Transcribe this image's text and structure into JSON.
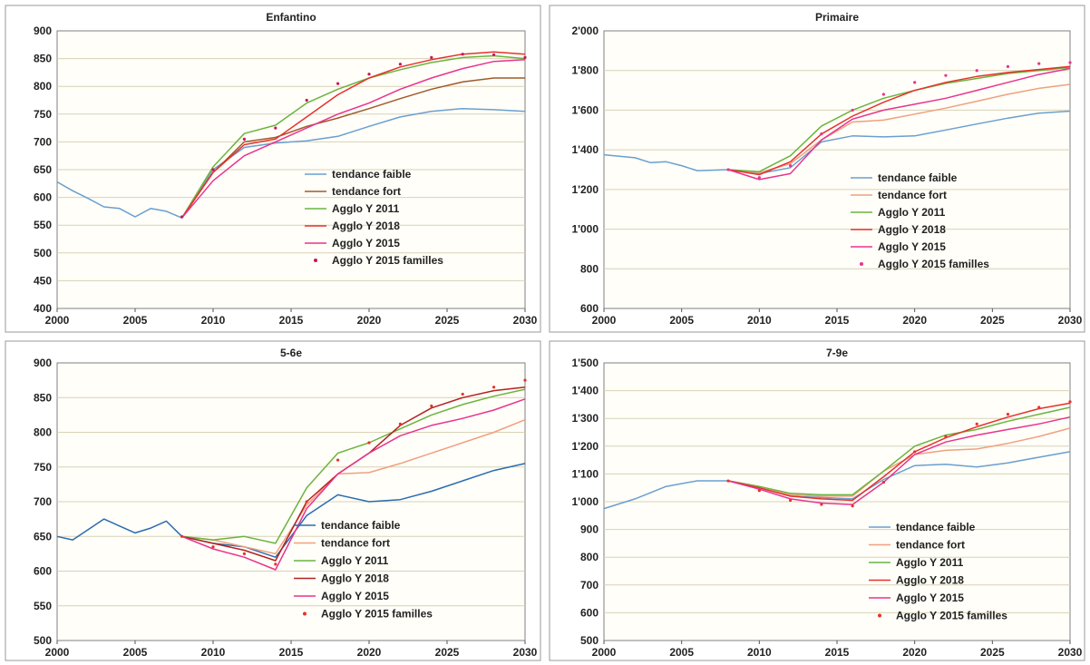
{
  "chart_data": [
    {
      "type": "line",
      "title": "Enfantino",
      "ylim": [
        400,
        900
      ],
      "yticks": [
        400,
        450,
        500,
        550,
        600,
        650,
        700,
        750,
        800,
        850,
        900
      ],
      "xlim": [
        2000,
        2030
      ],
      "xticks": [
        2000,
        2005,
        2010,
        2015,
        2020,
        2025,
        2030
      ],
      "legend_position": "center-right",
      "series": [
        {
          "name": "tendance faible",
          "color": "#6a9fd0",
          "style": "line",
          "x": [
            2000,
            2001,
            2002,
            2003,
            2004,
            2005,
            2006,
            2007,
            2008,
            2010,
            2012,
            2014,
            2016,
            2018,
            2020,
            2022,
            2024,
            2026,
            2028,
            2030
          ],
          "values": [
            628,
            612,
            598,
            583,
            580,
            565,
            580,
            575,
            563,
            650,
            690,
            698,
            702,
            710,
            728,
            745,
            755,
            760,
            758,
            755
          ]
        },
        {
          "name": "tendance fort",
          "color": "#a05a2c",
          "style": "line",
          "x": [
            2008,
            2010,
            2012,
            2014,
            2016,
            2018,
            2020,
            2022,
            2024,
            2026,
            2028,
            2030
          ],
          "values": [
            563,
            645,
            700,
            708,
            728,
            743,
            760,
            778,
            795,
            808,
            815,
            815
          ]
        },
        {
          "name": "Agglo Y 2011",
          "color": "#6cb33f",
          "style": "line",
          "x": [
            2008,
            2010,
            2012,
            2014,
            2016,
            2018,
            2020,
            2022,
            2024,
            2026,
            2028,
            2030
          ],
          "values": [
            563,
            655,
            715,
            730,
            770,
            795,
            815,
            830,
            843,
            852,
            855,
            850
          ]
        },
        {
          "name": "Agglo Y 2018",
          "color": "#e5322d",
          "style": "line",
          "x": [
            2008,
            2010,
            2012,
            2014,
            2016,
            2018,
            2020,
            2022,
            2024,
            2026,
            2028,
            2030
          ],
          "values": [
            563,
            645,
            695,
            705,
            745,
            785,
            815,
            835,
            848,
            858,
            862,
            858
          ]
        },
        {
          "name": "Agglo Y 2015",
          "color": "#e8338f",
          "style": "line",
          "x": [
            2008,
            2010,
            2012,
            2014,
            2016,
            2018,
            2020,
            2022,
            2024,
            2026,
            2028,
            2030
          ],
          "values": [
            563,
            630,
            675,
            700,
            725,
            750,
            770,
            795,
            815,
            832,
            845,
            848
          ]
        },
        {
          "name": "Agglo Y 2015  familles",
          "color": "#c2185b",
          "style": "dots",
          "x": [
            2008,
            2010,
            2012,
            2014,
            2016,
            2018,
            2020,
            2022,
            2024,
            2026,
            2028,
            2030
          ],
          "values": [
            565,
            650,
            705,
            725,
            775,
            805,
            822,
            840,
            852,
            858,
            857,
            852
          ]
        }
      ]
    },
    {
      "type": "line",
      "title": "Primaire",
      "ylim": [
        600,
        2000
      ],
      "yticks": [
        600,
        800,
        1000,
        1200,
        1400,
        1600,
        1800,
        2000
      ],
      "ytick_labels": [
        "600",
        "800",
        "1'000",
        "1'200",
        "1'400",
        "1'600",
        "1'800",
        "2'000"
      ],
      "xlim": [
        2000,
        2030
      ],
      "xticks": [
        2000,
        2005,
        2010,
        2015,
        2020,
        2025,
        2030
      ],
      "legend_position": "center-right",
      "series": [
        {
          "name": "tendance faible",
          "color": "#6a9fd0",
          "style": "line",
          "x": [
            2000,
            2002,
            2003,
            2004,
            2005,
            2006,
            2008,
            2010,
            2012,
            2014,
            2016,
            2018,
            2020,
            2022,
            2024,
            2026,
            2028,
            2030
          ],
          "values": [
            1375,
            1360,
            1335,
            1340,
            1320,
            1295,
            1300,
            1280,
            1310,
            1440,
            1470,
            1465,
            1470,
            1500,
            1530,
            1560,
            1585,
            1595
          ]
        },
        {
          "name": "tendance fort",
          "color": "#f0a080",
          "style": "line",
          "x": [
            2008,
            2010,
            2012,
            2014,
            2016,
            2018,
            2020,
            2022,
            2024,
            2026,
            2028,
            2030
          ],
          "values": [
            1300,
            1285,
            1330,
            1450,
            1540,
            1550,
            1580,
            1610,
            1645,
            1680,
            1710,
            1730
          ]
        },
        {
          "name": "Agglo Y 2011",
          "color": "#6cb33f",
          "style": "line",
          "x": [
            2008,
            2010,
            2012,
            2014,
            2016,
            2018,
            2020,
            2022,
            2024,
            2026,
            2028,
            2030
          ],
          "values": [
            1300,
            1290,
            1370,
            1520,
            1600,
            1660,
            1700,
            1735,
            1760,
            1785,
            1800,
            1815
          ]
        },
        {
          "name": "Agglo Y 2018",
          "color": "#e5322d",
          "style": "line",
          "x": [
            2008,
            2010,
            2012,
            2014,
            2016,
            2018,
            2020,
            2022,
            2024,
            2026,
            2028,
            2030
          ],
          "values": [
            1300,
            1275,
            1340,
            1480,
            1570,
            1640,
            1700,
            1740,
            1770,
            1790,
            1805,
            1820
          ]
        },
        {
          "name": "Agglo Y 2015",
          "color": "#e8338f",
          "style": "line",
          "x": [
            2008,
            2010,
            2012,
            2014,
            2016,
            2018,
            2020,
            2022,
            2024,
            2026,
            2028,
            2030
          ],
          "values": [
            1300,
            1250,
            1280,
            1450,
            1555,
            1600,
            1630,
            1660,
            1700,
            1740,
            1780,
            1810
          ]
        },
        {
          "name": "Agglo Y 2015  familles",
          "color": "#e8338f",
          "style": "dots",
          "x": [
            2008,
            2010,
            2012,
            2014,
            2016,
            2018,
            2020,
            2022,
            2024,
            2026,
            2028,
            2030
          ],
          "values": [
            1300,
            1260,
            1320,
            1480,
            1600,
            1680,
            1740,
            1775,
            1800,
            1820,
            1835,
            1840
          ]
        }
      ]
    },
    {
      "type": "line",
      "title": "5-6e",
      "ylim": [
        500,
        900
      ],
      "yticks": [
        500,
        550,
        600,
        650,
        700,
        750,
        800,
        850,
        900
      ],
      "xlim": [
        2000,
        2030
      ],
      "xticks": [
        2000,
        2005,
        2010,
        2015,
        2020,
        2025,
        2030
      ],
      "legend_position": "bottom-right",
      "series": [
        {
          "name": "tendance faible",
          "color": "#2b6cb0",
          "style": "line",
          "x": [
            2000,
            2001,
            2002,
            2003,
            2004,
            2005,
            2006,
            2007,
            2008,
            2010,
            2012,
            2014,
            2016,
            2018,
            2020,
            2022,
            2024,
            2026,
            2028,
            2030
          ],
          "values": [
            650,
            645,
            660,
            675,
            665,
            655,
            662,
            672,
            650,
            640,
            635,
            620,
            680,
            710,
            700,
            703,
            715,
            730,
            745,
            755
          ]
        },
        {
          "name": "tendance fort",
          "color": "#f0a080",
          "style": "line",
          "x": [
            2008,
            2010,
            2012,
            2014,
            2016,
            2018,
            2020,
            2022,
            2024,
            2026,
            2028,
            2030
          ],
          "values": [
            650,
            645,
            635,
            625,
            695,
            740,
            742,
            755,
            770,
            785,
            800,
            818
          ]
        },
        {
          "name": "Agglo Y 2011",
          "color": "#6cb33f",
          "style": "line",
          "x": [
            2008,
            2010,
            2012,
            2014,
            2016,
            2018,
            2020,
            2022,
            2024,
            2026,
            2028,
            2030
          ],
          "values": [
            650,
            645,
            650,
            640,
            720,
            770,
            785,
            805,
            825,
            840,
            852,
            862
          ]
        },
        {
          "name": "Agglo Y 2018",
          "color": "#b22222",
          "style": "line",
          "x": [
            2008,
            2010,
            2012,
            2014,
            2016,
            2018,
            2020,
            2022,
            2024,
            2026,
            2028,
            2030
          ],
          "values": [
            650,
            640,
            630,
            615,
            700,
            740,
            770,
            810,
            835,
            850,
            860,
            865
          ]
        },
        {
          "name": "Agglo Y 2015",
          "color": "#e8338f",
          "style": "line",
          "x": [
            2008,
            2010,
            2012,
            2014,
            2016,
            2018,
            2020,
            2022,
            2024,
            2026,
            2028,
            2030
          ],
          "values": [
            650,
            632,
            620,
            602,
            690,
            740,
            770,
            795,
            810,
            820,
            832,
            848
          ]
        },
        {
          "name": "Agglo Y 2015  familles",
          "color": "#e5322d",
          "style": "dots",
          "x": [
            2008,
            2010,
            2012,
            2014,
            2016,
            2018,
            2020,
            2022,
            2024,
            2026,
            2028,
            2030
          ],
          "values": [
            650,
            635,
            625,
            610,
            700,
            760,
            785,
            812,
            838,
            855,
            865,
            875
          ]
        }
      ]
    },
    {
      "type": "line",
      "title": "7-9e",
      "ylim": [
        500,
        1500
      ],
      "yticks": [
        500,
        600,
        700,
        800,
        900,
        1000,
        1100,
        1200,
        1300,
        1400,
        1500
      ],
      "ytick_labels": [
        "500",
        "600",
        "700",
        "800",
        "900",
        "1'000",
        "1'100",
        "1'200",
        "1'300",
        "1'400",
        "1'500"
      ],
      "xlim": [
        2000,
        2030
      ],
      "xticks": [
        2000,
        2005,
        2010,
        2015,
        2020,
        2025,
        2030
      ],
      "legend_position": "bottom-right",
      "series": [
        {
          "name": "tendance faible",
          "color": "#6a9fd0",
          "style": "line",
          "x": [
            2000,
            2002,
            2004,
            2006,
            2008,
            2010,
            2012,
            2014,
            2016,
            2018,
            2020,
            2022,
            2024,
            2026,
            2028,
            2030
          ],
          "values": [
            975,
            1010,
            1055,
            1075,
            1075,
            1050,
            1020,
            1015,
            1010,
            1080,
            1130,
            1135,
            1125,
            1140,
            1160,
            1180
          ]
        },
        {
          "name": "tendance fort",
          "color": "#f0a080",
          "style": "line",
          "x": [
            2008,
            2010,
            2012,
            2014,
            2016,
            2018,
            2020,
            2022,
            2024,
            2026,
            2028,
            2030
          ],
          "values": [
            1075,
            1055,
            1025,
            1020,
            1020,
            1110,
            1170,
            1185,
            1190,
            1210,
            1235,
            1265
          ]
        },
        {
          "name": "Agglo Y 2011",
          "color": "#6cb33f",
          "style": "line",
          "x": [
            2008,
            2010,
            2012,
            2014,
            2016,
            2018,
            2020,
            2022,
            2024,
            2026,
            2028,
            2030
          ],
          "values": [
            1075,
            1055,
            1030,
            1025,
            1025,
            1110,
            1200,
            1240,
            1260,
            1290,
            1315,
            1340
          ]
        },
        {
          "name": "Agglo Y 2018",
          "color": "#e5322d",
          "style": "line",
          "x": [
            2008,
            2010,
            2012,
            2014,
            2016,
            2018,
            2020,
            2022,
            2024,
            2026,
            2028,
            2030
          ],
          "values": [
            1075,
            1050,
            1020,
            1010,
            1005,
            1090,
            1180,
            1230,
            1270,
            1305,
            1335,
            1355
          ]
        },
        {
          "name": "Agglo Y 2015",
          "color": "#e8338f",
          "style": "line",
          "x": [
            2008,
            2010,
            2012,
            2014,
            2016,
            2018,
            2020,
            2022,
            2024,
            2026,
            2028,
            2030
          ],
          "values": [
            1075,
            1045,
            1010,
            995,
            990,
            1070,
            1170,
            1215,
            1240,
            1260,
            1280,
            1305
          ]
        },
        {
          "name": "Agglo Y 2015  familles",
          "color": "#e5322d",
          "style": "dots",
          "x": [
            2008,
            2010,
            2012,
            2014,
            2016,
            2018,
            2020,
            2022,
            2024,
            2026,
            2028,
            2030
          ],
          "values": [
            1075,
            1040,
            1005,
            990,
            985,
            1070,
            1180,
            1235,
            1280,
            1315,
            1340,
            1360
          ]
        }
      ]
    }
  ]
}
